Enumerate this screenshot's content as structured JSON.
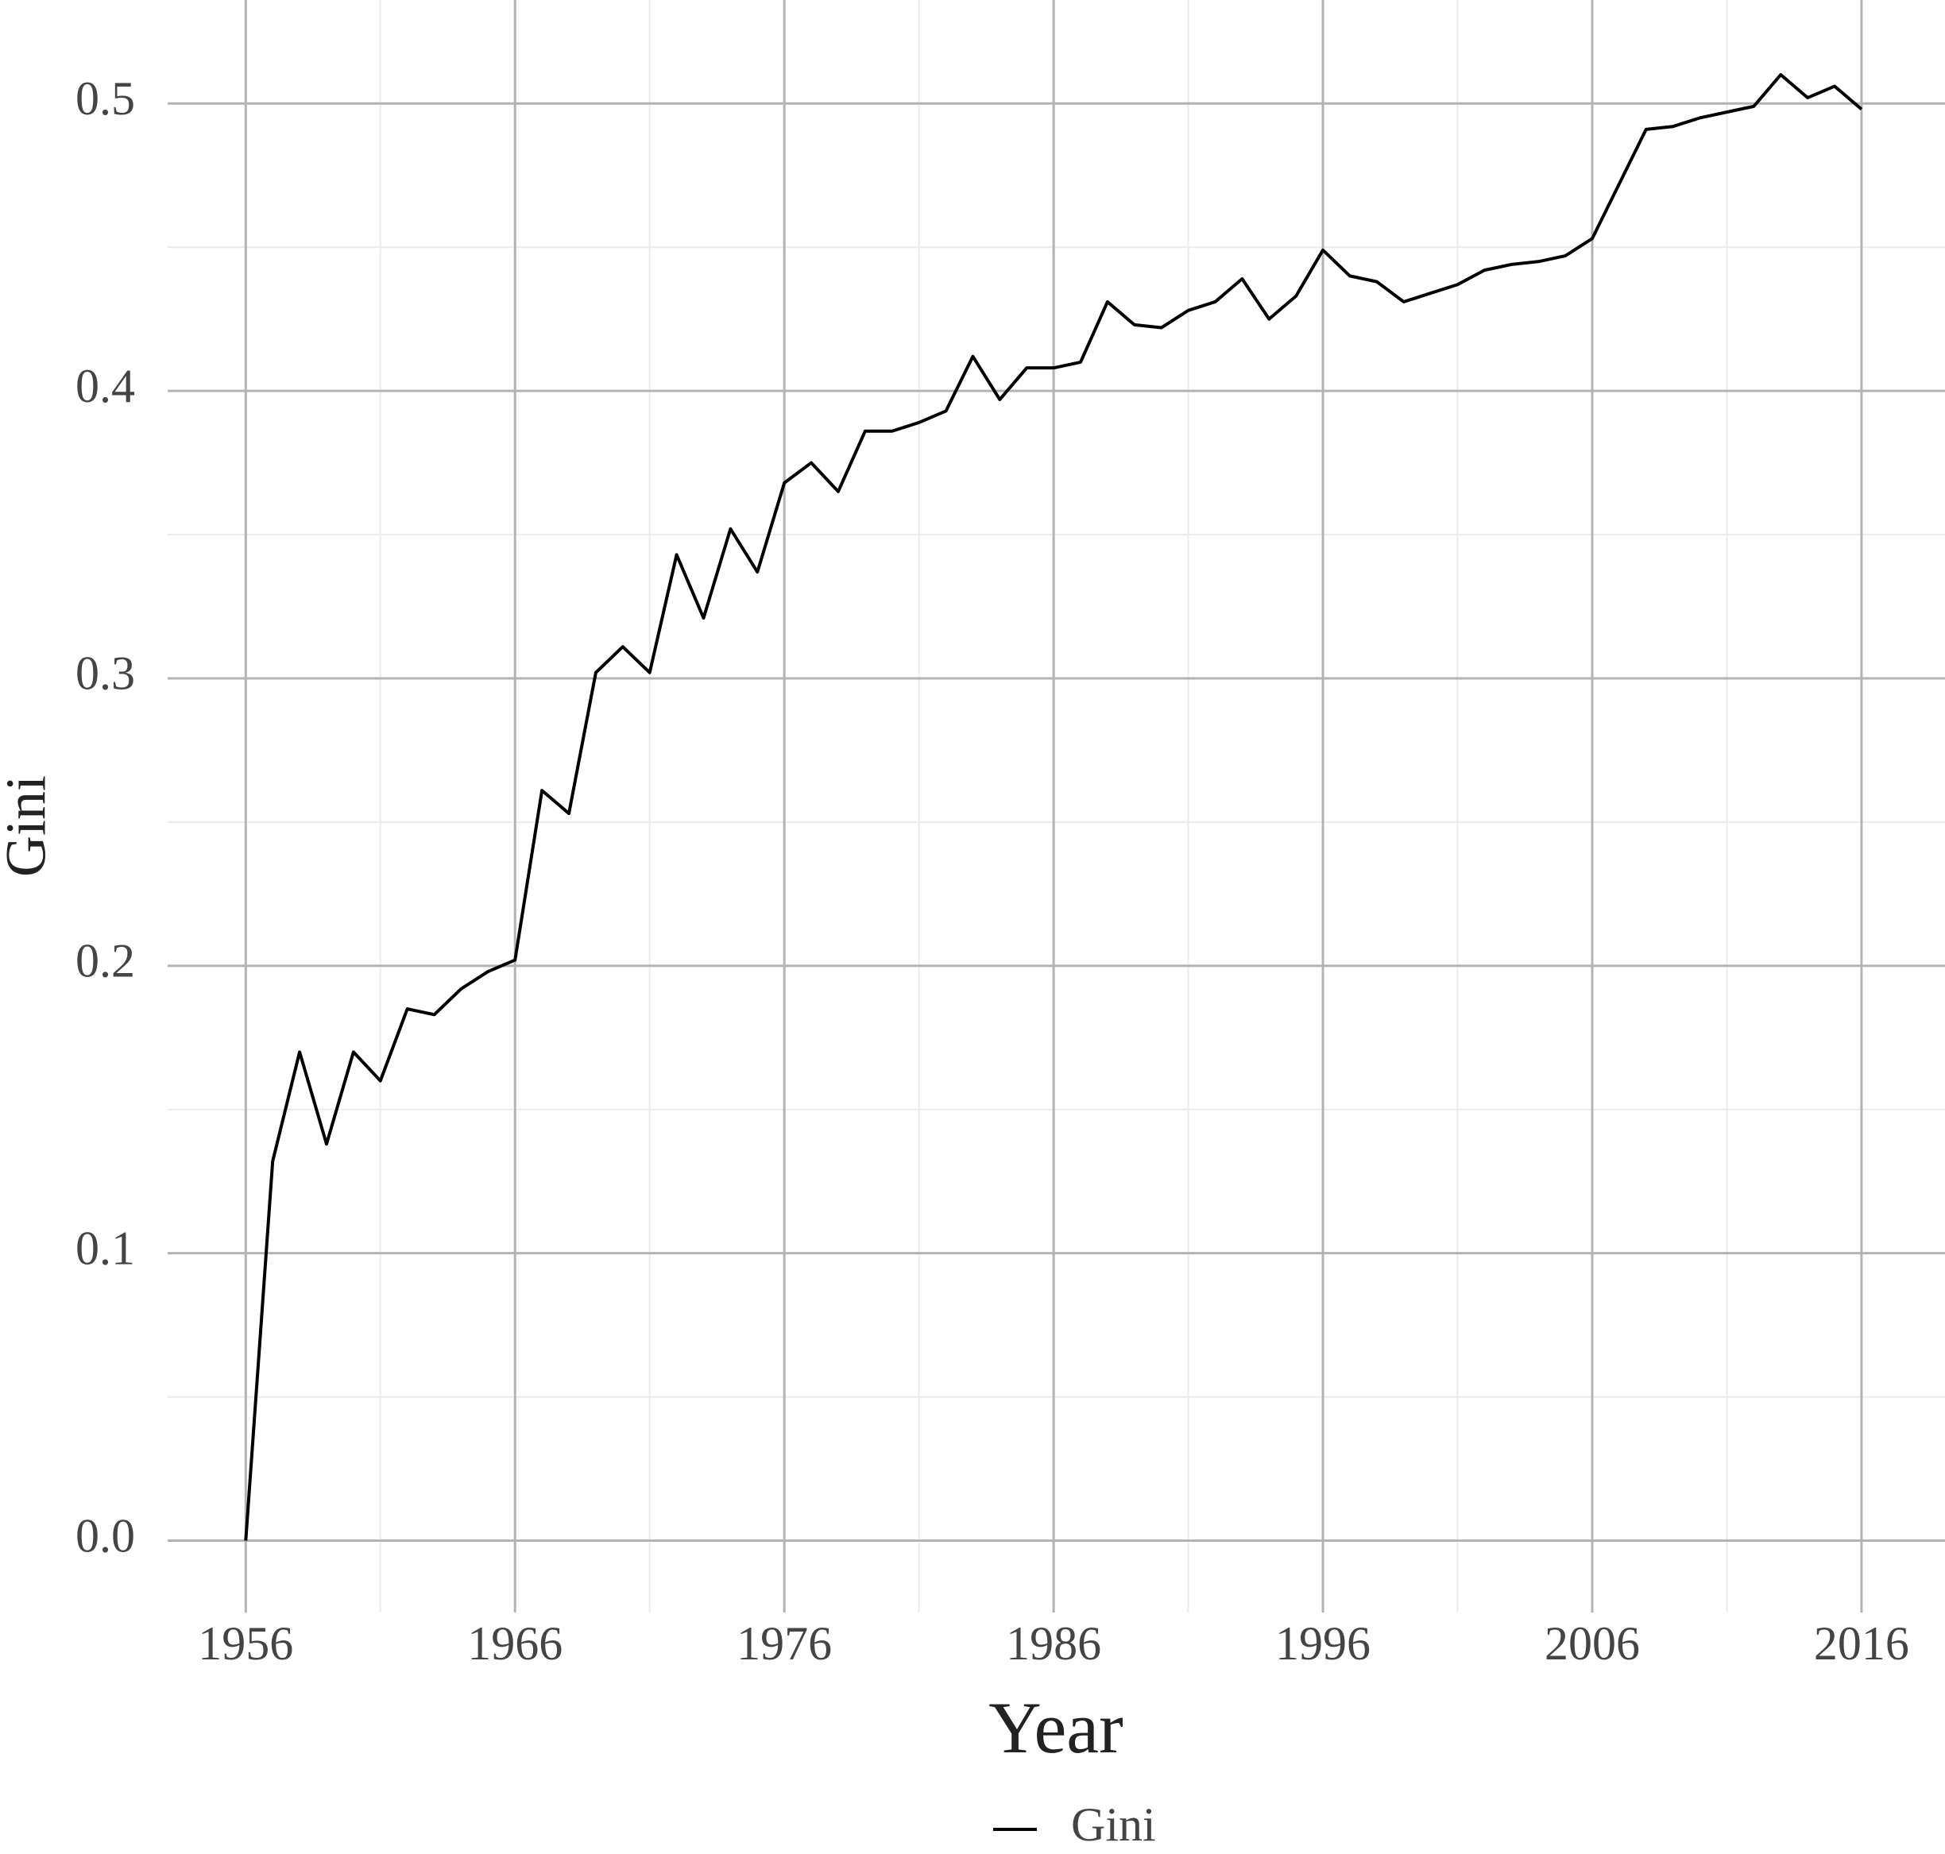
{
  "chart_data": {
    "type": "line",
    "x_label": "Year",
    "y_label": "Gini",
    "x": [
      1956,
      1957,
      1958,
      1959,
      1960,
      1961,
      1962,
      1963,
      1964,
      1965,
      1966,
      1967,
      1968,
      1969,
      1970,
      1971,
      1972,
      1973,
      1974,
      1975,
      1976,
      1977,
      1978,
      1979,
      1980,
      1981,
      1982,
      1983,
      1984,
      1985,
      1986,
      1987,
      1988,
      1989,
      1990,
      1991,
      1992,
      1993,
      1994,
      1995,
      1996,
      1997,
      1998,
      1999,
      2000,
      2001,
      2002,
      2003,
      2004,
      2005,
      2006,
      2007,
      2008,
      2009,
      2010,
      2011,
      2012,
      2013,
      2014,
      2015,
      2016
    ],
    "series": [
      {
        "name": "Gini",
        "color": "#000000",
        "values": [
          0,
          0.132,
          0.17,
          0.138,
          0.17,
          0.16,
          0.185,
          0.183,
          0.192,
          0.198,
          0.202,
          0.261,
          0.253,
          0.302,
          0.311,
          0.302,
          0.343,
          0.321,
          0.352,
          0.337,
          0.368,
          0.375,
          0.365,
          0.386,
          0.386,
          0.389,
          0.393,
          0.412,
          0.397,
          0.408,
          0.408,
          0.41,
          0.431,
          0.423,
          0.422,
          0.428,
          0.431,
          0.439,
          0.425,
          0.433,
          0.449,
          0.44,
          0.438,
          0.431,
          0.434,
          0.437,
          0.442,
          0.444,
          0.445,
          0.447,
          0.453,
          0.472,
          0.491,
          0.492,
          0.495,
          0.497,
          0.499,
          0.51,
          0.502,
          0.506,
          0.498
        ]
      }
    ],
    "xlim": [
      1953.1,
      2019.1
    ],
    "ylim": [
      -0.025,
      0.536
    ],
    "xticks": [
      1956,
      1966,
      1976,
      1986,
      1996,
      2006,
      2016
    ],
    "yticks": [
      {
        "value": 0,
        "label": "0.0"
      },
      0.1,
      0.2,
      0.3,
      0.4,
      0.5
    ],
    "minor_xticks": [
      1961,
      1971,
      1981,
      1991,
      2001,
      2011
    ],
    "minor_yticks": [
      0.05,
      0.15,
      0.25,
      0.35,
      0.45
    ],
    "grid": true,
    "legend": "bottom"
  }
}
